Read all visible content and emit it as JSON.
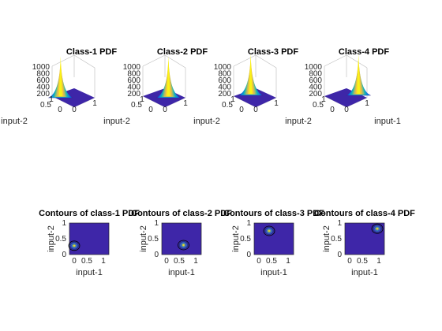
{
  "chart_data": [
    {
      "type": "surface",
      "title": "Class-1 PDF",
      "zticks": [
        "1000",
        "800",
        "600",
        "400",
        "200"
      ],
      "xticks": [
        "0.5",
        "0"
      ],
      "yticks": [
        "0",
        "1"
      ],
      "axis_labels": [
        "input-2"
      ],
      "peak": [
        0.2,
        0.3
      ],
      "zlim": [
        0,
        1000
      ]
    },
    {
      "type": "surface",
      "title": "Class-2 PDF",
      "zticks": [
        "1000",
        "800",
        "600",
        "400",
        "200"
      ],
      "xticks": [
        "0.5",
        "0"
      ],
      "yticks": [
        "0",
        "1"
      ],
      "axis_labels": [
        "input-2"
      ],
      "peak": [
        0.6,
        0.3
      ],
      "zlim": [
        0,
        1000
      ]
    },
    {
      "type": "surface",
      "title": "Class-3 PDF",
      "zticks": [
        "1000",
        "800",
        "600",
        "400",
        "200"
      ],
      "xticks": [
        "0.5",
        "0"
      ],
      "yticks": [
        "0",
        "1"
      ],
      "axis_labels": [
        "input-2"
      ],
      "peak": [
        0.4,
        0.8
      ],
      "zlim": [
        0,
        1000
      ]
    },
    {
      "type": "surface",
      "title": "Class-4 PDF",
      "zticks": [
        "1000",
        "800",
        "600",
        "400",
        "200"
      ],
      "xticks": [
        "0.5",
        "0"
      ],
      "yticks": [
        "0",
        "1"
      ],
      "axis_labels": [
        "input-2",
        "input-1"
      ],
      "peak": [
        0.8,
        0.8
      ],
      "zlim": [
        0,
        1000
      ]
    },
    {
      "type": "contour",
      "title": "Contours of class-1 PDF",
      "xlabel": "input-1",
      "ylabel": "input-2",
      "xticks": [
        "0",
        "0.5",
        "1"
      ],
      "yticks": [
        "0",
        "0.5",
        "1"
      ],
      "xlim": [
        0,
        1
      ],
      "ylim": [
        0,
        1
      ],
      "center": [
        0.12,
        0.28
      ]
    },
    {
      "type": "contour",
      "title": "Contours of class-2 PDF",
      "xlabel": "input-1",
      "ylabel": "input-2",
      "xticks": [
        "0",
        "0.5",
        "1"
      ],
      "yticks": [
        "0",
        "0.5",
        "1"
      ],
      "xlim": [
        0,
        1
      ],
      "ylim": [
        0,
        1
      ],
      "center": [
        0.55,
        0.3
      ]
    },
    {
      "type": "contour",
      "title": "Contours of class-3 PDF",
      "xlabel": "input-1",
      "ylabel": "input-2",
      "xticks": [
        "0",
        "0.5",
        "1"
      ],
      "yticks": [
        "0",
        "0.5",
        "1"
      ],
      "xlim": [
        0,
        1
      ],
      "ylim": [
        0,
        1
      ],
      "center": [
        0.38,
        0.75
      ]
    },
    {
      "type": "contour",
      "title": "Contours of class-4 PDF",
      "xlabel": "input-1",
      "ylabel": "input-2",
      "xticks": [
        "0",
        "0.5",
        "1"
      ],
      "yticks": [
        "0",
        "0.5",
        "1"
      ],
      "xlim": [
        0,
        1
      ],
      "ylim": [
        0,
        1
      ],
      "center": [
        0.82,
        0.82
      ]
    }
  ],
  "colors": {
    "background": "#3e26a8",
    "peak": "#f9fb0e",
    "mid": "#26bcb2",
    "axis": "#262626"
  }
}
